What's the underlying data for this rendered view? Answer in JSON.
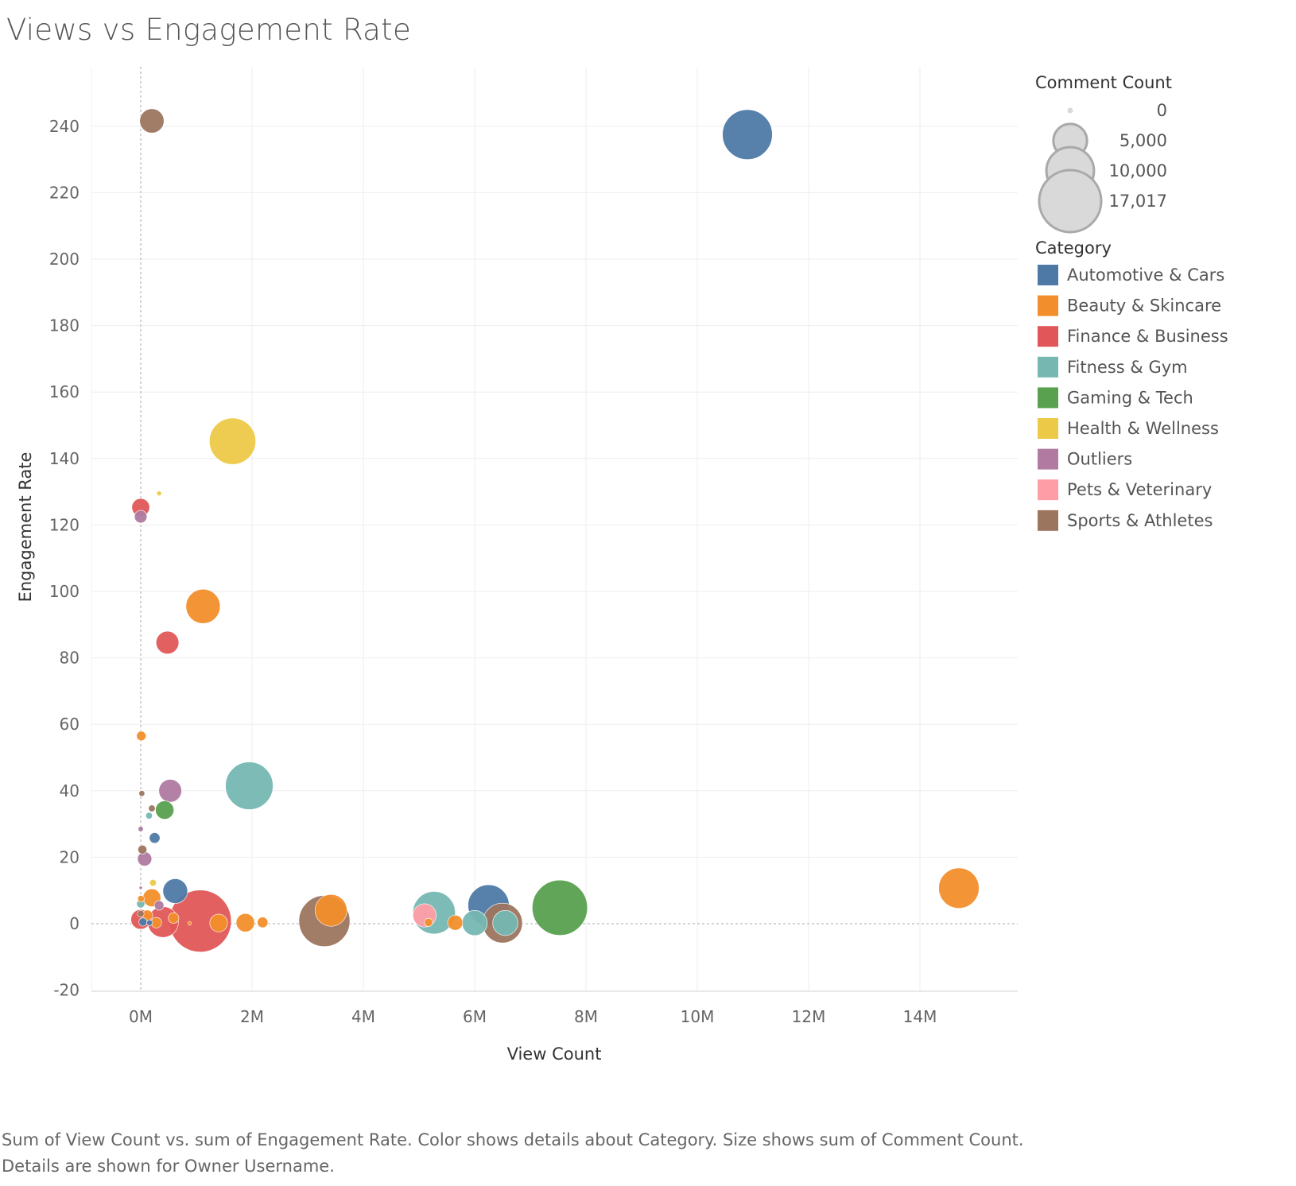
{
  "title": "Views vs Engagement Rate",
  "caption": "Sum of View Count vs. sum of Engagement Rate.  Color shows details about Category.  Size shows sum of Comment Count.  Details are shown for Owner Username.",
  "chart_data": {
    "type": "scatter",
    "title": "Views vs Engagement Rate",
    "xlabel": "View Count",
    "ylabel": "Engagement Rate",
    "xlim": [
      -900000,
      15800000
    ],
    "ylim": [
      -20,
      252
    ],
    "x_ticks": [
      0,
      2000000,
      4000000,
      6000000,
      8000000,
      10000000,
      12000000,
      14000000
    ],
    "x_tick_labels": [
      "0M",
      "2M",
      "4M",
      "6M",
      "8M",
      "10M",
      "12M",
      "14M"
    ],
    "y_ticks": [
      -20,
      0,
      20,
      40,
      60,
      80,
      100,
      120,
      140,
      160,
      180,
      200,
      220,
      240
    ],
    "y_tick_labels": [
      "-20",
      "0",
      "20",
      "40",
      "60",
      "80",
      "100",
      "120",
      "140",
      "160",
      "180",
      "200",
      "220",
      "240"
    ],
    "grid": true,
    "size_legend": {
      "title": "Comment Count",
      "values": [
        0,
        5000,
        10000,
        17017
      ],
      "labels": [
        "0",
        "5,000",
        "10,000",
        "17,017"
      ]
    },
    "color_legend": {
      "title": "Category",
      "placement": "right",
      "items": [
        {
          "name": "Automotive & Cars",
          "color": "#4e79a7"
        },
        {
          "name": "Beauty & Skincare",
          "color": "#f28e2b"
        },
        {
          "name": "Finance & Business",
          "color": "#e15759"
        },
        {
          "name": "Fitness & Gym",
          "color": "#76b7b2"
        },
        {
          "name": "Gaming & Tech",
          "color": "#59a14f"
        },
        {
          "name": "Health & Wellness",
          "color": "#edc948"
        },
        {
          "name": "Outliers",
          "color": "#b07aa1"
        },
        {
          "name": "Pets & Veterinary",
          "color": "#ff9da7"
        },
        {
          "name": "Sports & Athletes",
          "color": "#9c755f"
        }
      ]
    },
    "points": [
      {
        "x": 10900000,
        "y": 237.5,
        "size": 11000,
        "category": "Automotive & Cars"
      },
      {
        "x": 6250000,
        "y": 5.5,
        "size": 7500,
        "category": "Automotive & Cars"
      },
      {
        "x": 620000,
        "y": 9.8,
        "size": 2700,
        "category": "Automotive & Cars"
      },
      {
        "x": 250000,
        "y": 25.8,
        "size": 500,
        "category": "Automotive & Cars"
      },
      {
        "x": 160000,
        "y": 0.3,
        "size": 150,
        "category": "Automotive & Cars"
      },
      {
        "x": 40000,
        "y": 0.5,
        "size": 300,
        "category": "Automotive & Cars"
      },
      {
        "x": 14700000,
        "y": 10.7,
        "size": 7200,
        "category": "Beauty & Skincare"
      },
      {
        "x": 1120000,
        "y": 95.5,
        "size": 5200,
        "category": "Beauty & Skincare"
      },
      {
        "x": 3420000,
        "y": 4.0,
        "size": 4500,
        "category": "Beauty & Skincare"
      },
      {
        "x": 200000,
        "y": 7.8,
        "size": 1400,
        "category": "Beauty & Skincare"
      },
      {
        "x": 1880000,
        "y": 0.3,
        "size": 1500,
        "category": "Beauty & Skincare"
      },
      {
        "x": 1400000,
        "y": 0.2,
        "size": 1400,
        "category": "Beauty & Skincare"
      },
      {
        "x": 5650000,
        "y": 0.3,
        "size": 1000,
        "category": "Beauty & Skincare"
      },
      {
        "x": 2190000,
        "y": 0.4,
        "size": 500,
        "category": "Beauty & Skincare"
      },
      {
        "x": 590000,
        "y": 1.7,
        "size": 500,
        "category": "Beauty & Skincare"
      },
      {
        "x": 5170000,
        "y": 0.4,
        "size": 300,
        "category": "Beauty & Skincare"
      },
      {
        "x": 280000,
        "y": 0.3,
        "size": 500,
        "category": "Beauty & Skincare"
      },
      {
        "x": 10000,
        "y": 56.5,
        "size": 400,
        "category": "Beauty & Skincare"
      },
      {
        "x": 880000,
        "y": 0.1,
        "size": 60,
        "category": "Beauty & Skincare"
      },
      {
        "x": 5000,
        "y": 7.5,
        "size": 200,
        "category": "Beauty & Skincare"
      },
      {
        "x": 120000,
        "y": 2.5,
        "size": 500,
        "category": "Beauty & Skincare"
      },
      {
        "x": 1070000,
        "y": 0.8,
        "size": 17017,
        "category": "Finance & Business"
      },
      {
        "x": 400000,
        "y": 0.5,
        "size": 4200,
        "category": "Finance & Business"
      },
      {
        "x": 480000,
        "y": 84.6,
        "size": 2300,
        "category": "Finance & Business"
      },
      {
        "x": 0,
        "y": 125.3,
        "size": 1400,
        "category": "Finance & Business"
      },
      {
        "x": 0,
        "y": 1.3,
        "size": 1700,
        "category": "Finance & Business"
      },
      {
        "x": 1950000,
        "y": 41.5,
        "size": 10000,
        "category": "Fitness & Gym"
      },
      {
        "x": 5270000,
        "y": 3.3,
        "size": 8000,
        "category": "Fitness & Gym"
      },
      {
        "x": 6000000,
        "y": 0.2,
        "size": 2800,
        "category": "Fitness & Gym"
      },
      {
        "x": 6550000,
        "y": 0.2,
        "size": 2800,
        "category": "Fitness & Gym"
      },
      {
        "x": 150000,
        "y": 32.5,
        "size": 200,
        "category": "Fitness & Gym"
      },
      {
        "x": 0,
        "y": 6.0,
        "size": 300,
        "category": "Fitness & Gym"
      },
      {
        "x": 7530000,
        "y": 4.8,
        "size": 13500,
        "category": "Gaming & Tech"
      },
      {
        "x": 430000,
        "y": 34.2,
        "size": 1500,
        "category": "Gaming & Tech"
      },
      {
        "x": 1650000,
        "y": 145.2,
        "size": 9500,
        "category": "Health & Wellness"
      },
      {
        "x": 330000,
        "y": 129.5,
        "size": 100,
        "category": "Health & Wellness"
      },
      {
        "x": 220000,
        "y": 12.3,
        "size": 200,
        "category": "Health & Wellness"
      },
      {
        "x": 530000,
        "y": 40.0,
        "size": 2300,
        "category": "Outliers"
      },
      {
        "x": 0,
        "y": 122.5,
        "size": 700,
        "category": "Outliers"
      },
      {
        "x": 70000,
        "y": 19.5,
        "size": 900,
        "category": "Outliers"
      },
      {
        "x": 0,
        "y": 28.5,
        "size": 120,
        "category": "Outliers"
      },
      {
        "x": 0,
        "y": 10.8,
        "size": 30,
        "category": "Outliers"
      },
      {
        "x": 330000,
        "y": 5.5,
        "size": 400,
        "category": "Outliers"
      },
      {
        "x": 5100000,
        "y": 2.5,
        "size": 2400,
        "category": "Pets & Veterinary"
      },
      {
        "x": 200000,
        "y": 241.6,
        "size": 2600,
        "category": "Sports & Athletes"
      },
      {
        "x": 3300000,
        "y": 0.8,
        "size": 11500,
        "category": "Sports & Athletes"
      },
      {
        "x": 6500000,
        "y": 0.2,
        "size": 7000,
        "category": "Sports & Athletes"
      },
      {
        "x": 200000,
        "y": 34.7,
        "size": 200,
        "category": "Sports & Athletes"
      },
      {
        "x": 20000,
        "y": 39.2,
        "size": 150,
        "category": "Sports & Athletes"
      },
      {
        "x": 30000,
        "y": 22.3,
        "size": 350,
        "category": "Sports & Athletes"
      },
      {
        "x": 0,
        "y": 3.0,
        "size": 200,
        "category": "Sports & Athletes"
      }
    ]
  }
}
